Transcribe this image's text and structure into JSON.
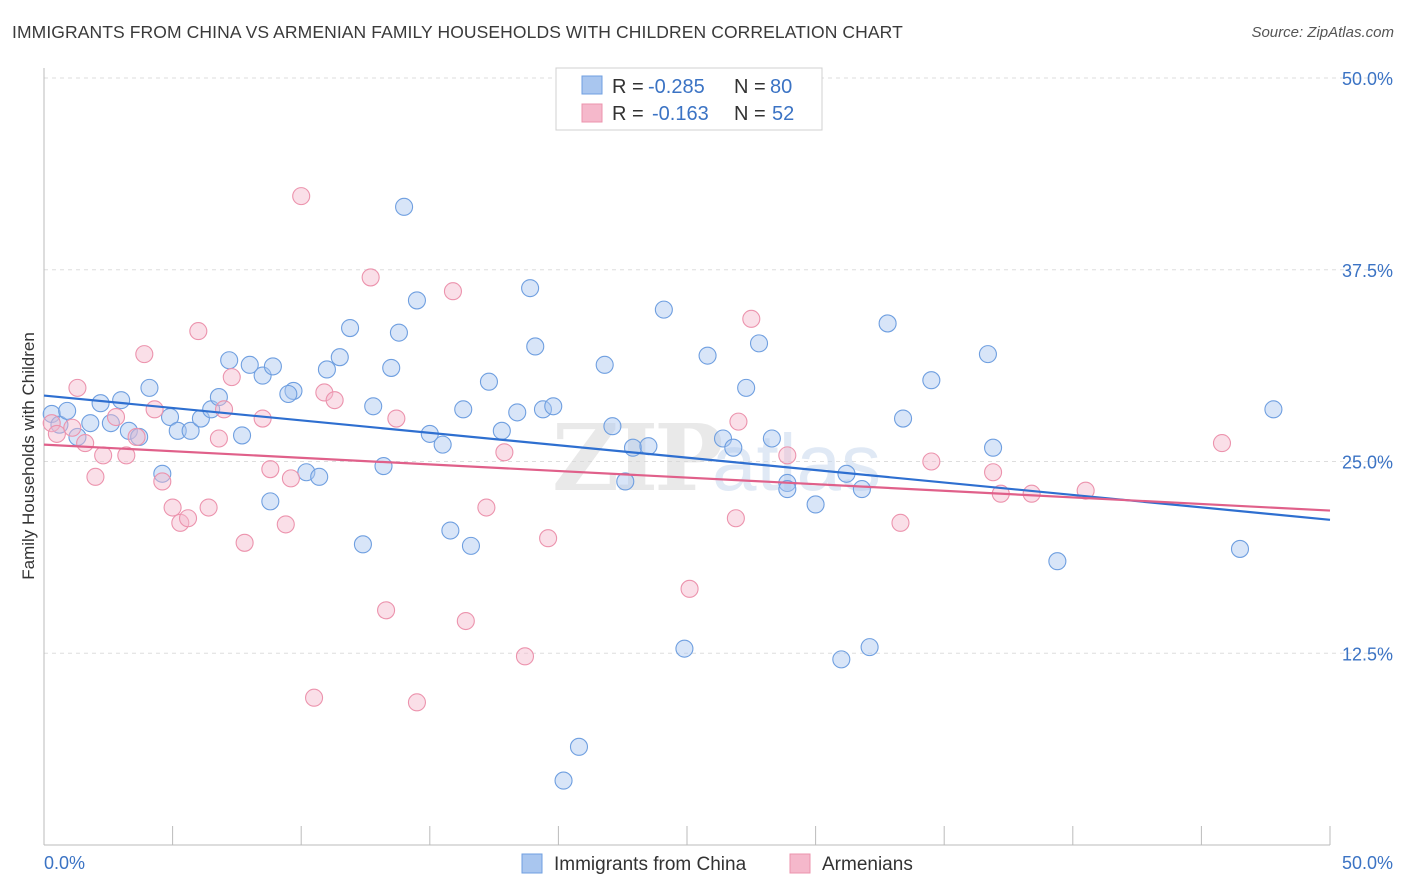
{
  "title": "IMMIGRANTS FROM CHINA VS ARMENIAN FAMILY HOUSEHOLDS WITH CHILDREN CORRELATION CHART",
  "source": "Source: ZipAtlas.com",
  "watermark": "ZIPatlas",
  "legend": {
    "rows": [
      {
        "r_label": "R =",
        "r_value": "-0.285",
        "n_label": "N =",
        "n_value": "80",
        "color": "#a9c6ef"
      },
      {
        "r_label": "R =",
        "r_value": "-0.163",
        "n_label": "N =",
        "n_value": "52",
        "color": "#f5b8cb"
      }
    ]
  },
  "bottom_legend": [
    {
      "label": "Immigrants from China",
      "color": "#a9c6ef"
    },
    {
      "label": "Armenians",
      "color": "#f5b8cb"
    }
  ],
  "chart_data": {
    "type": "scatter",
    "title": "IMMIGRANTS FROM CHINA VS ARMENIAN FAMILY HOUSEHOLDS WITH CHILDREN CORRELATION CHART",
    "xlabel": "",
    "ylabel": "Family Households with Children",
    "xlim": [
      0,
      50
    ],
    "ylim": [
      0,
      50
    ],
    "x_tick_labels": [
      "0.0%",
      "50.0%"
    ],
    "y_tick_values": [
      12.5,
      25.0,
      37.5,
      50.0
    ],
    "y_tick_labels": [
      "12.5%",
      "25.0%",
      "37.5%",
      "50.0%"
    ],
    "grid": true,
    "legend_position": "top-center",
    "series": [
      {
        "name": "Immigrants from China",
        "color": "#6f9fe0",
        "fill": "#a9c6ef",
        "line_color": "#2e6fd0",
        "trend": [
          [
            0,
            29.3
          ],
          [
            50,
            21.2
          ]
        ],
        "points": [
          [
            0.3,
            28.1
          ],
          [
            0.6,
            27.4
          ],
          [
            0.9,
            28.3
          ],
          [
            1.3,
            26.6
          ],
          [
            1.8,
            27.5
          ],
          [
            2.2,
            28.8
          ],
          [
            2.6,
            27.5
          ],
          [
            3.0,
            29.0
          ],
          [
            3.3,
            27.0
          ],
          [
            3.7,
            26.6
          ],
          [
            4.1,
            29.8
          ],
          [
            4.6,
            24.2
          ],
          [
            4.9,
            27.9
          ],
          [
            5.2,
            27.0
          ],
          [
            5.7,
            27.0
          ],
          [
            6.1,
            27.8
          ],
          [
            6.5,
            28.4
          ],
          [
            6.8,
            29.2
          ],
          [
            7.2,
            31.6
          ],
          [
            7.7,
            26.7
          ],
          [
            8.0,
            31.3
          ],
          [
            8.5,
            30.6
          ],
          [
            8.9,
            31.2
          ],
          [
            8.8,
            22.4
          ],
          [
            9.7,
            29.6
          ],
          [
            9.5,
            29.4
          ],
          [
            10.2,
            24.3
          ],
          [
            10.7,
            24.0
          ],
          [
            11.0,
            31.0
          ],
          [
            11.5,
            31.8
          ],
          [
            11.9,
            33.7
          ],
          [
            12.4,
            19.6
          ],
          [
            12.8,
            28.6
          ],
          [
            13.2,
            24.7
          ],
          [
            13.5,
            31.1
          ],
          [
            13.8,
            33.4
          ],
          [
            14.5,
            35.5
          ],
          [
            14.0,
            41.6
          ],
          [
            15.0,
            26.8
          ],
          [
            15.5,
            26.1
          ],
          [
            15.8,
            20.5
          ],
          [
            16.3,
            28.4
          ],
          [
            16.6,
            19.5
          ],
          [
            17.3,
            30.2
          ],
          [
            17.8,
            27.0
          ],
          [
            18.4,
            28.2
          ],
          [
            18.9,
            36.3
          ],
          [
            19.1,
            32.5
          ],
          [
            19.4,
            28.4
          ],
          [
            19.8,
            28.6
          ],
          [
            20.2,
            4.2
          ],
          [
            20.8,
            6.4
          ],
          [
            21.8,
            31.3
          ],
          [
            22.1,
            27.3
          ],
          [
            22.6,
            23.7
          ],
          [
            22.9,
            25.9
          ],
          [
            23.5,
            26.0
          ],
          [
            24.1,
            34.9
          ],
          [
            24.9,
            12.8
          ],
          [
            25.8,
            31.9
          ],
          [
            26.4,
            26.5
          ],
          [
            26.8,
            25.9
          ],
          [
            27.3,
            29.8
          ],
          [
            27.8,
            32.7
          ],
          [
            28.3,
            26.5
          ],
          [
            28.9,
            23.6
          ],
          [
            28.9,
            23.2
          ],
          [
            30.0,
            22.2
          ],
          [
            31.0,
            12.1
          ],
          [
            31.2,
            24.2
          ],
          [
            31.8,
            23.2
          ],
          [
            32.1,
            12.9
          ],
          [
            32.8,
            34.0
          ],
          [
            33.4,
            27.8
          ],
          [
            34.5,
            30.3
          ],
          [
            36.7,
            32.0
          ],
          [
            36.9,
            25.9
          ],
          [
            39.4,
            18.5
          ],
          [
            46.5,
            19.3
          ],
          [
            47.8,
            28.4
          ]
        ]
      },
      {
        "name": "Armenians",
        "color": "#ec93ad",
        "fill": "#f5b8cb",
        "line_color": "#e0608a",
        "trend": [
          [
            0,
            26.1
          ],
          [
            50,
            21.8
          ]
        ],
        "points": [
          [
            0.3,
            27.5
          ],
          [
            0.5,
            26.8
          ],
          [
            1.1,
            27.2
          ],
          [
            1.3,
            29.8
          ],
          [
            1.6,
            26.2
          ],
          [
            2.0,
            24.0
          ],
          [
            2.3,
            25.4
          ],
          [
            2.8,
            27.9
          ],
          [
            3.2,
            25.4
          ],
          [
            3.6,
            26.6
          ],
          [
            3.9,
            32.0
          ],
          [
            4.3,
            28.4
          ],
          [
            4.6,
            23.7
          ],
          [
            5.0,
            22.0
          ],
          [
            5.3,
            21.0
          ],
          [
            5.6,
            21.3
          ],
          [
            6.0,
            33.5
          ],
          [
            6.4,
            22.0
          ],
          [
            6.8,
            26.5
          ],
          [
            7.0,
            28.4
          ],
          [
            7.3,
            30.5
          ],
          [
            7.8,
            19.7
          ],
          [
            8.5,
            27.8
          ],
          [
            8.8,
            24.5
          ],
          [
            9.4,
            20.9
          ],
          [
            9.6,
            23.9
          ],
          [
            10.0,
            42.3
          ],
          [
            10.5,
            9.6
          ],
          [
            10.9,
            29.5
          ],
          [
            11.3,
            29.0
          ],
          [
            12.7,
            37.0
          ],
          [
            13.3,
            15.3
          ],
          [
            13.7,
            27.8
          ],
          [
            14.5,
            9.3
          ],
          [
            15.9,
            36.1
          ],
          [
            16.4,
            14.6
          ],
          [
            17.2,
            22.0
          ],
          [
            17.9,
            25.6
          ],
          [
            18.7,
            12.3
          ],
          [
            19.6,
            20.0
          ],
          [
            25.1,
            16.7
          ],
          [
            26.9,
            21.3
          ],
          [
            27.0,
            27.6
          ],
          [
            27.5,
            34.3
          ],
          [
            28.9,
            25.4
          ],
          [
            33.3,
            21.0
          ],
          [
            34.5,
            25.0
          ],
          [
            36.9,
            24.3
          ],
          [
            37.2,
            22.9
          ],
          [
            38.4,
            22.9
          ],
          [
            40.5,
            23.1
          ],
          [
            45.8,
            26.2
          ]
        ]
      }
    ]
  }
}
